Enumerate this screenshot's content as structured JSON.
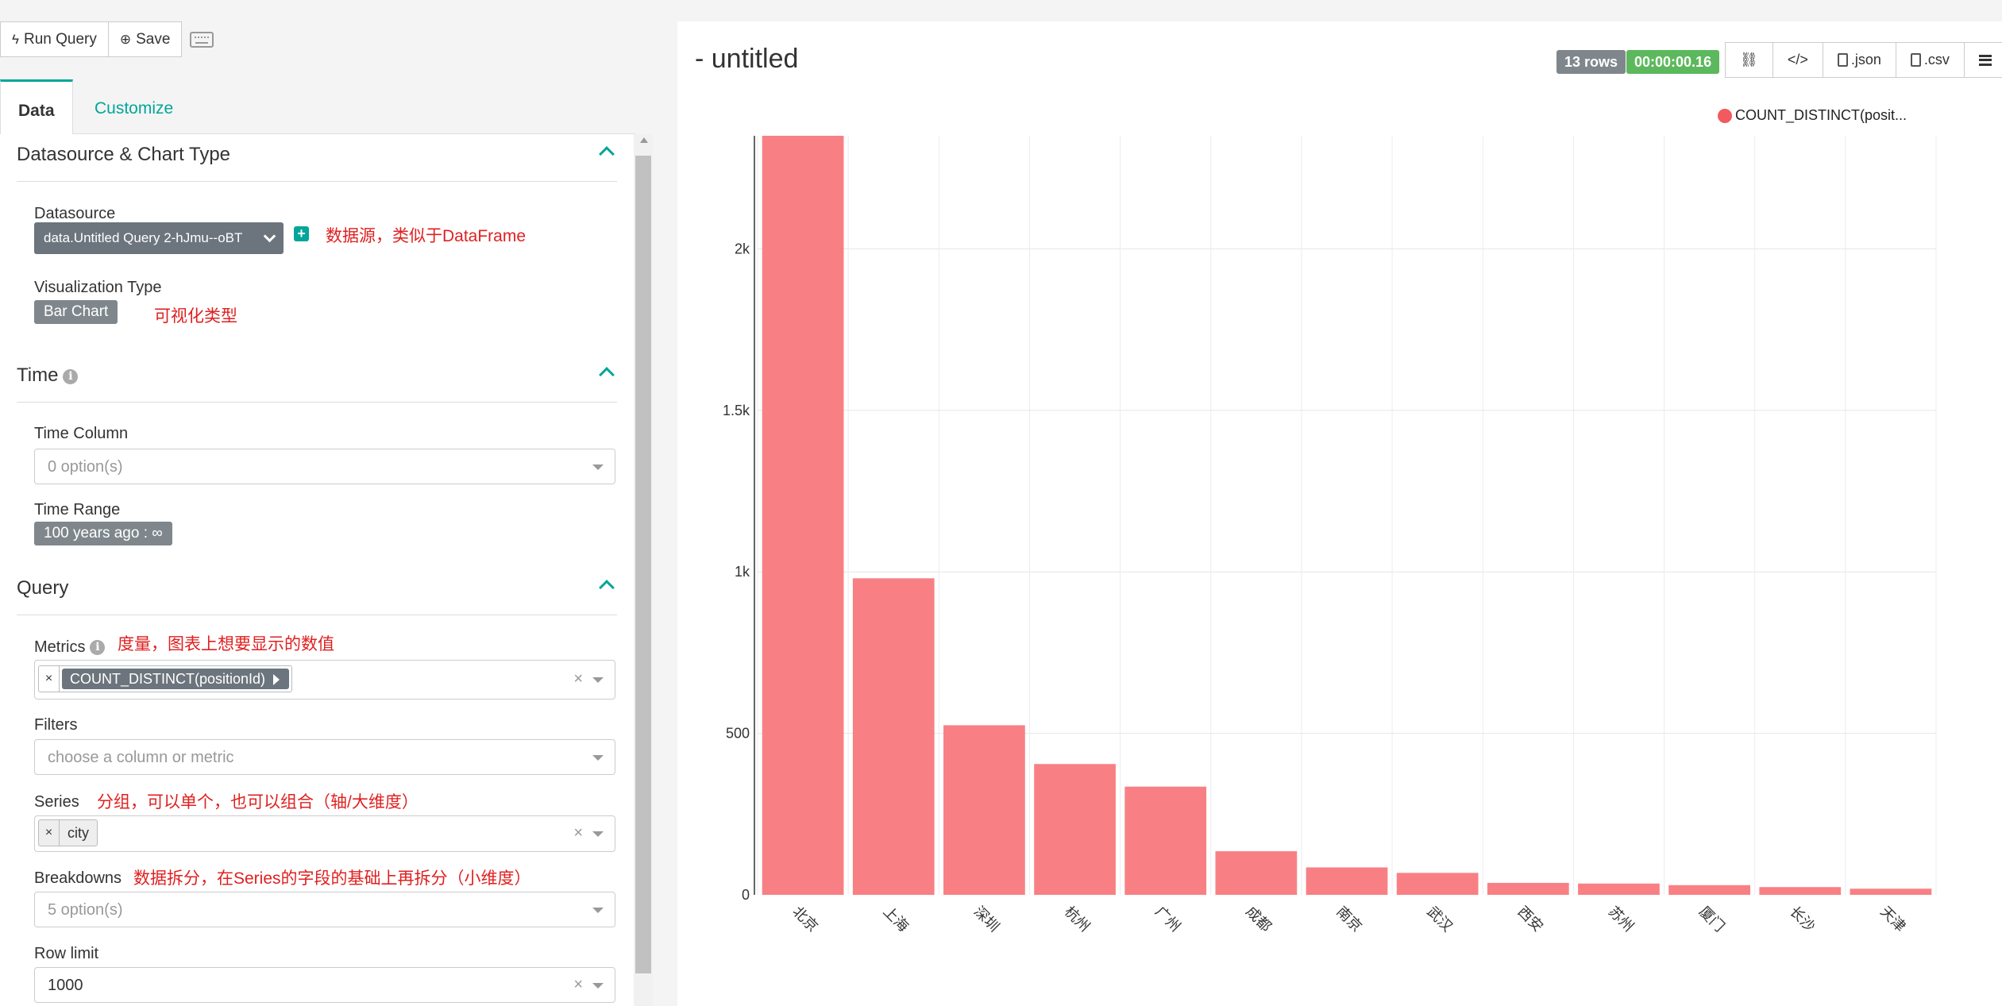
{
  "toolbar": {
    "run_query_label": "Run Query",
    "save_label": "Save"
  },
  "tabs": {
    "data": "Data",
    "customize": "Customize"
  },
  "sections": {
    "datasource": {
      "title": "Datasource & Chart Type",
      "datasource_label": "Datasource",
      "datasource_value": "data.Untitled Query 2-hJmu--oBT",
      "datasource_note": "数据源，类似于DataFrame",
      "viz_label": "Visualization Type",
      "viz_value": "Bar Chart",
      "viz_note": "可视化类型"
    },
    "time": {
      "title": "Time",
      "time_column_label": "Time Column",
      "time_column_placeholder": "0 option(s)",
      "time_range_label": "Time Range",
      "time_range_value": "100 years ago : ∞"
    },
    "query": {
      "title": "Query",
      "metrics_label": "Metrics",
      "metrics_note": "度量，图表上想要显示的数值",
      "metrics_value": "COUNT_DISTINCT(positionId)",
      "filters_label": "Filters",
      "filters_placeholder": "choose a column or metric",
      "series_label": "Series",
      "series_note": "分组，可以单个，也可以组合（轴/大维度）",
      "series_value": "city",
      "breakdowns_label": "Breakdowns",
      "breakdowns_note": "数据拆分，在Series的字段的基础上再拆分（小维度）",
      "breakdowns_placeholder": "5 option(s)",
      "row_limit_label": "Row limit",
      "row_limit_value": "1000"
    }
  },
  "result": {
    "title": "- untitled",
    "rows_badge": "13 rows",
    "time_badge": "00:00:00.16",
    "json_label": ".json",
    "csv_label": ".csv"
  },
  "colors": {
    "accent": "#00a699",
    "bar": "#f8797d",
    "annotation": "#e02020"
  },
  "chart_data": {
    "type": "bar",
    "categories": [
      "北京",
      "上海",
      "深圳",
      "杭州",
      "广州",
      "成都",
      "南京",
      "武汉",
      "西安",
      "苏州",
      "厦门",
      "长沙",
      "天津"
    ],
    "series": [
      {
        "name": "COUNT_DISTINCT(posit...",
        "values": [
          2350,
          980,
          525,
          405,
          335,
          135,
          85,
          68,
          37,
          35,
          30,
          24,
          19
        ]
      }
    ],
    "yticks": [
      0,
      500,
      1000,
      1500,
      2000
    ],
    "ytick_labels": [
      "0",
      "500",
      "1k",
      "1.5k",
      "2k"
    ],
    "ylim": [
      0,
      2350
    ],
    "grid": true,
    "legend": "top-right"
  }
}
